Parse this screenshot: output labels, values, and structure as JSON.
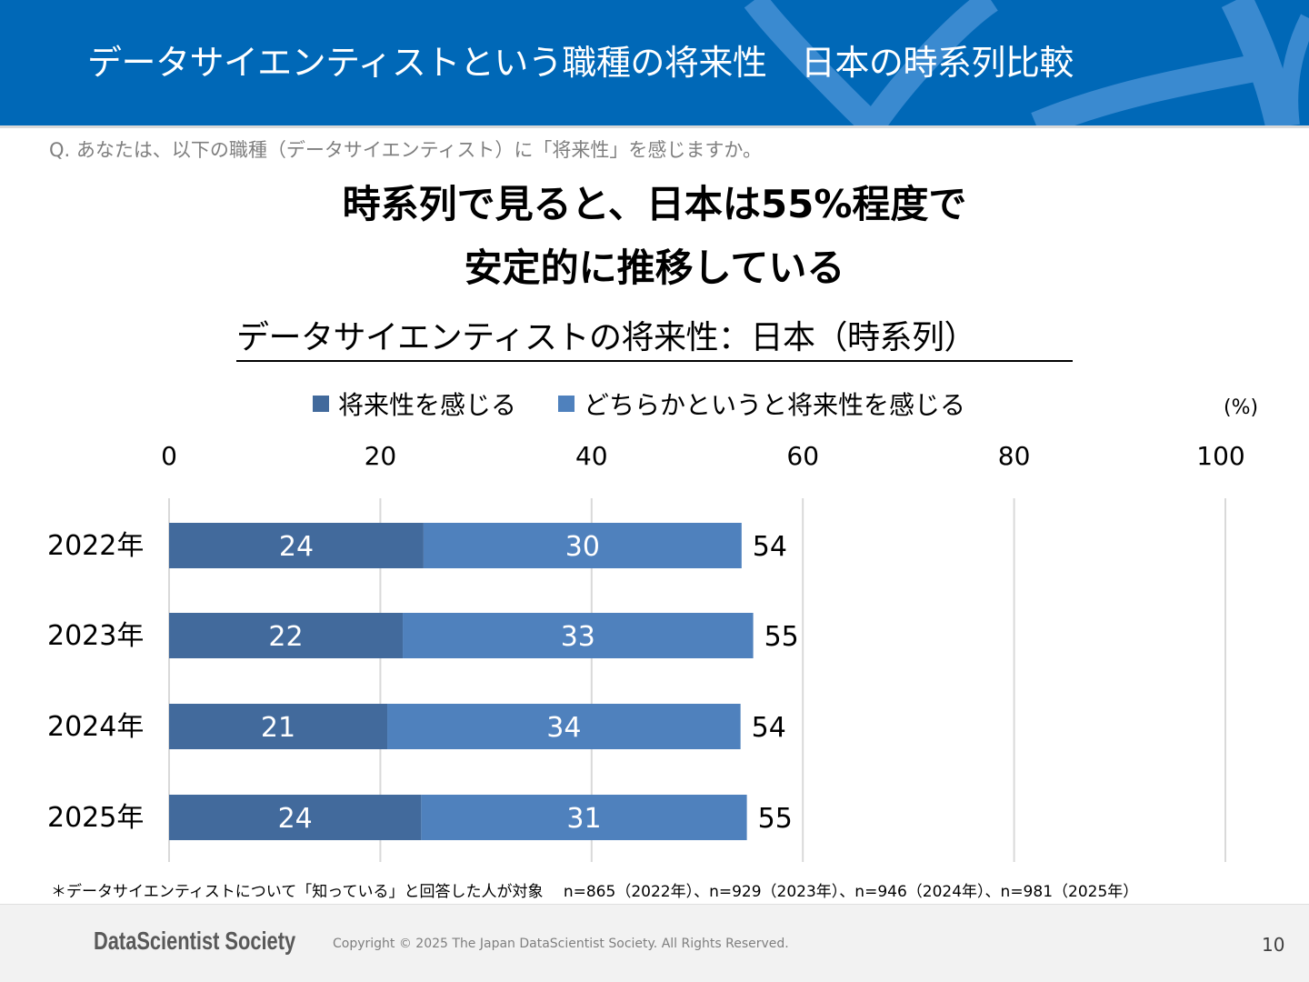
{
  "header": {
    "title": "データサイエンティストという職種の将来性　日本の時系列比較"
  },
  "question": "Q. あなたは、以下の職種（データサイエンティスト）に「将来性」を感じますか。",
  "headline": {
    "line1": "時系列で見ると、日本は55%程度で",
    "line2": "安定的に推移している"
  },
  "colors": {
    "header_bg": "#0068b7",
    "series_strong": "#426a9c",
    "series_weak": "#4f81bd"
  },
  "chart_data": {
    "type": "bar",
    "orientation": "horizontal",
    "stacked": true,
    "title": "データサイエンティストの将来性：日本（時系列）",
    "unit_label": "(%)",
    "xlabel": "",
    "ylabel": "",
    "xlim": [
      0,
      100
    ],
    "x_ticks": [
      0,
      20,
      40,
      60,
      80,
      100
    ],
    "grid": true,
    "legend_position": "top",
    "categories": [
      "2022年",
      "2023年",
      "2024年",
      "2025年"
    ],
    "series": [
      {
        "name": "将来性を感じる",
        "color": "#426a9c",
        "values": [
          24,
          22,
          21,
          24
        ]
      },
      {
        "name": "どちらかというと将来性を感じる",
        "color": "#4f81bd",
        "values": [
          30,
          33,
          34,
          31
        ]
      }
    ],
    "totals": [
      54,
      55,
      54,
      55
    ],
    "bar_extents": [
      54.2,
      55.3,
      54.1,
      54.7
    ]
  },
  "footnote": "＊データサイエンティストについて「知っている」と回答した人が対象　 n=865（2022年）、n=929（2023年）、n=946（2024年）、n=981（2025年）",
  "footer": {
    "logo": "DataScientist Society",
    "copyright": "Copyright © 2025 The Japan DataScientist Society. All Rights Reserved.",
    "page_number": "10"
  }
}
